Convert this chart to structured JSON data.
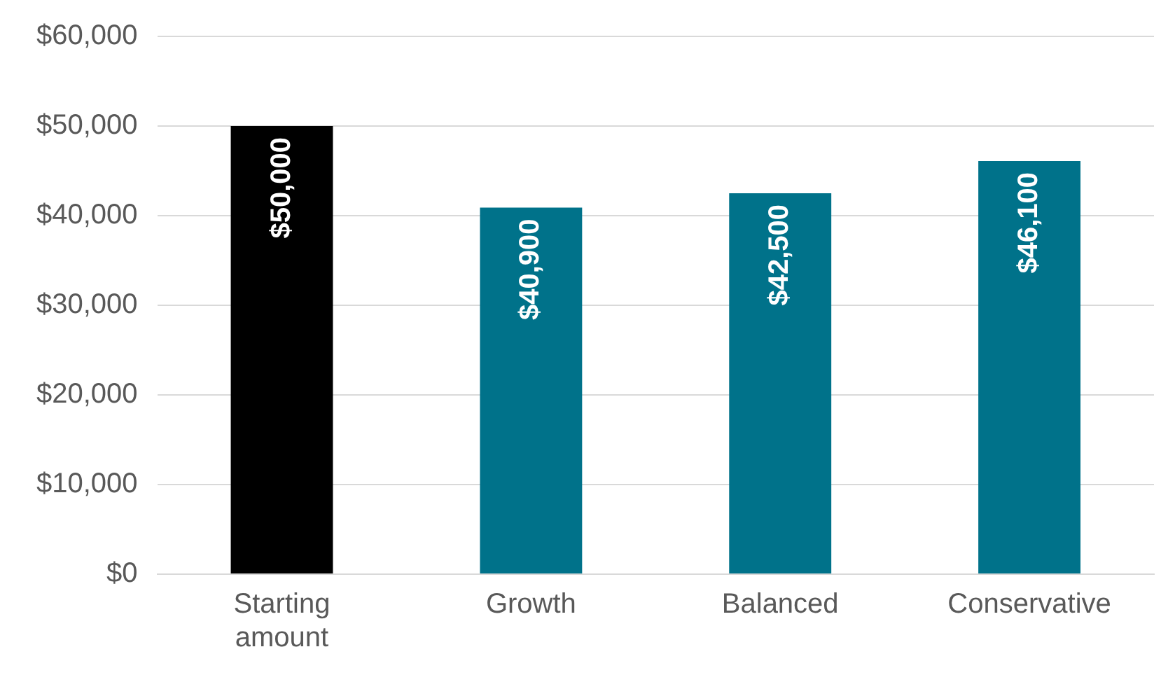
{
  "chart_data": {
    "type": "bar",
    "categories": [
      "Starting amount",
      "Growth",
      "Balanced",
      "Conservative"
    ],
    "values": [
      50000,
      40900,
      42500,
      46100
    ],
    "value_labels": [
      "$50,000",
      "$40,900",
      "$42,500",
      "$46,100"
    ],
    "colors": [
      "#000000",
      "#00728a",
      "#00728a",
      "#00728a"
    ],
    "ylim": [
      0,
      60000
    ],
    "yticks": [
      {
        "value": 0,
        "label": "$0"
      },
      {
        "value": 10000,
        "label": "$10,000"
      },
      {
        "value": 20000,
        "label": "$20,000"
      },
      {
        "value": 30000,
        "label": "$30,000"
      },
      {
        "value": 40000,
        "label": "$40,000"
      },
      {
        "value": 50000,
        "label": "$50,000"
      },
      {
        "value": 60000,
        "label": "$60,000"
      }
    ],
    "grid": "y",
    "legend": false
  }
}
